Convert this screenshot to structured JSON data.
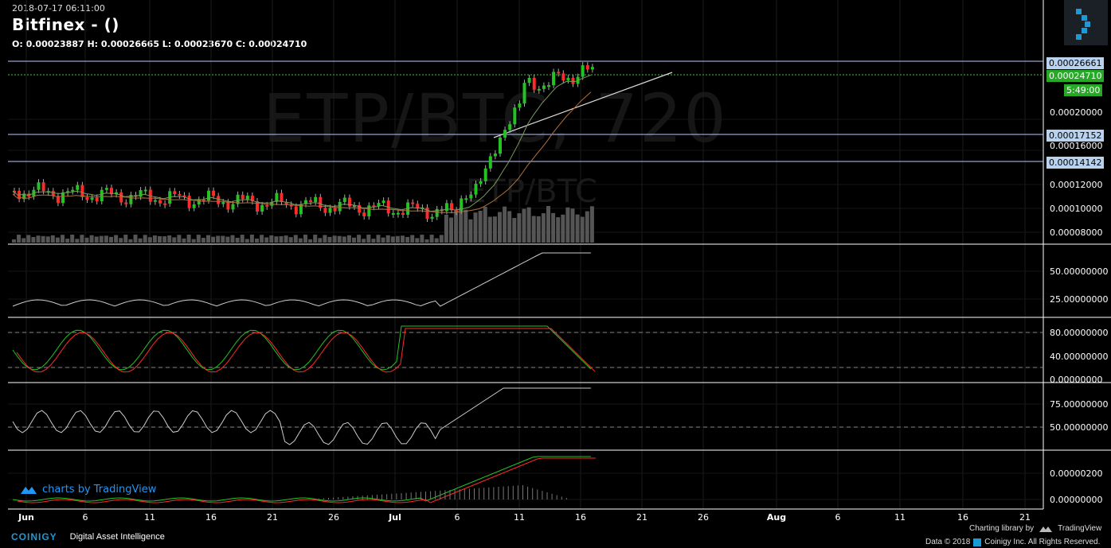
{
  "header": {
    "timestamp": "2018-07-17 06:11:00",
    "title": "Bitfinex -  ()",
    "ohlc": "O: 0.00023887 H: 0.00026665 L: 0.00023670 C: 0.00024710"
  },
  "watermark": {
    "main": "ETP/BTC, 720",
    "sub": "ETP/BTC"
  },
  "price_axis": {
    "ticks": [
      "0.00020000",
      "0.00016000",
      "0.00012000",
      "0.00010000",
      "0.00008000"
    ],
    "tags": [
      {
        "label": "0.00026661",
        "kind": "line"
      },
      {
        "label": "0.00024710",
        "kind": "last"
      },
      {
        "label": "5:49:00",
        "kind": "countdown"
      },
      {
        "label": "0.00017152",
        "kind": "line"
      },
      {
        "label": "0.00014142",
        "kind": "line"
      }
    ]
  },
  "indicator_axes": {
    "rsi": [
      "50.00000000",
      "25.00000000"
    ],
    "stoch": [
      "80.00000000",
      "40.00000000",
      "0.00000000"
    ],
    "osc": [
      "75.00000000",
      "50.00000000"
    ],
    "macd": [
      "0.00000200",
      "0.00000000"
    ]
  },
  "time_axis": [
    "Jun",
    "6",
    "11",
    "16",
    "21",
    "26",
    "Jul",
    "6",
    "11",
    "16",
    "21",
    "26",
    "Aug",
    "6",
    "11",
    "16",
    "21"
  ],
  "branding": {
    "tv_label": "charts by TradingView",
    "coinigy_name": "COINIGY",
    "coinigy_tagline": "Digital Asset Intelligence",
    "charting_library": "Charting library by",
    "tradingview": "TradingView",
    "data_credit_prefix": "Data © 2018",
    "data_credit_suffix": "Coinigy Inc. All Rights Reserved."
  },
  "colors": {
    "up": "#22c322",
    "down": "#ff2a2a",
    "accent": "#1a9bd7",
    "line_tag": "#b8d2ef",
    "last_tag": "#27a827"
  }
}
